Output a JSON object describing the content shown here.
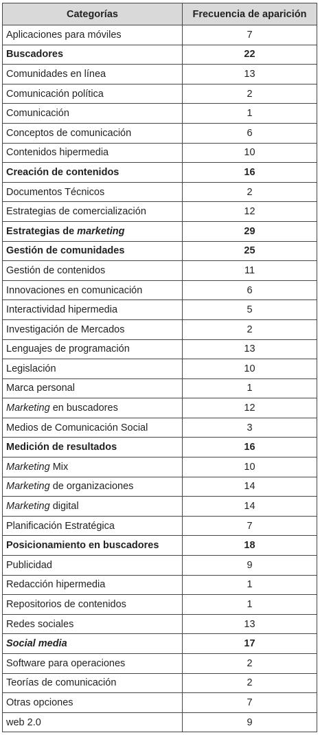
{
  "table": {
    "header": [
      "Categorías",
      "Frecuencia de aparición"
    ],
    "rows": [
      {
        "category": [
          {
            "text": "Aplicaciones para móviles"
          }
        ],
        "frequency": 7
      },
      {
        "category": [
          {
            "text": "Buscadores"
          }
        ],
        "frequency": 22,
        "bold": true
      },
      {
        "category": [
          {
            "text": "Comunidades en línea"
          }
        ],
        "frequency": 13
      },
      {
        "category": [
          {
            "text": "Comunicación política"
          }
        ],
        "frequency": 2
      },
      {
        "category": [
          {
            "text": "Comunicación"
          }
        ],
        "frequency": 1
      },
      {
        "category": [
          {
            "text": "Conceptos de comunicación"
          }
        ],
        "frequency": 6
      },
      {
        "category": [
          {
            "text": "Contenidos hipermedia"
          }
        ],
        "frequency": 10
      },
      {
        "category": [
          {
            "text": "Creación de contenidos"
          }
        ],
        "frequency": 16,
        "bold": true
      },
      {
        "category": [
          {
            "text": "Documentos Técnicos"
          }
        ],
        "frequency": 2
      },
      {
        "category": [
          {
            "text": "Estrategias de comercialización"
          }
        ],
        "frequency": 12
      },
      {
        "category": [
          {
            "text": "Estrategias de "
          },
          {
            "text": "marketing",
            "italic": true
          }
        ],
        "frequency": 29,
        "bold": true
      },
      {
        "category": [
          {
            "text": "Gestión de comunidades"
          }
        ],
        "frequency": 25,
        "bold": true
      },
      {
        "category": [
          {
            "text": "Gestión de contenidos"
          }
        ],
        "frequency": 11
      },
      {
        "category": [
          {
            "text": "Innovaciones en comunicación"
          }
        ],
        "frequency": 6
      },
      {
        "category": [
          {
            "text": "Interactividad hipermedia"
          }
        ],
        "frequency": 5
      },
      {
        "category": [
          {
            "text": "Investigación de Mercados"
          }
        ],
        "frequency": 2
      },
      {
        "category": [
          {
            "text": "Lenguajes de programación"
          }
        ],
        "frequency": 13
      },
      {
        "category": [
          {
            "text": "Legislación"
          }
        ],
        "frequency": 10
      },
      {
        "category": [
          {
            "text": "Marca personal"
          }
        ],
        "frequency": 1
      },
      {
        "category": [
          {
            "text": "Marketing",
            "italic": true
          },
          {
            "text": " en buscadores"
          }
        ],
        "frequency": 12
      },
      {
        "category": [
          {
            "text": "Medios de Comunicación Social"
          }
        ],
        "frequency": 3
      },
      {
        "category": [
          {
            "text": "Medición de resultados"
          }
        ],
        "frequency": 16,
        "bold": true
      },
      {
        "category": [
          {
            "text": "Marketing",
            "italic": true
          },
          {
            "text": " Mix"
          }
        ],
        "frequency": 10
      },
      {
        "category": [
          {
            "text": "Marketing",
            "italic": true
          },
          {
            "text": " de organizaciones"
          }
        ],
        "frequency": 14
      },
      {
        "category": [
          {
            "text": "Marketing",
            "italic": true
          },
          {
            "text": " digital"
          }
        ],
        "frequency": 14
      },
      {
        "category": [
          {
            "text": "Planificación Estratégica"
          }
        ],
        "frequency": 7
      },
      {
        "category": [
          {
            "text": "Posicionamiento en buscadores"
          }
        ],
        "frequency": 18,
        "bold": true
      },
      {
        "category": [
          {
            "text": "Publicidad"
          }
        ],
        "frequency": 9
      },
      {
        "category": [
          {
            "text": "Redacción hipermedia"
          }
        ],
        "frequency": 1
      },
      {
        "category": [
          {
            "text": "Repositorios de contenidos"
          }
        ],
        "frequency": 1
      },
      {
        "category": [
          {
            "text": "Redes sociales"
          }
        ],
        "frequency": 13
      },
      {
        "category": [
          {
            "text": "Social media",
            "italic": true
          }
        ],
        "frequency": 17,
        "bold": true
      },
      {
        "category": [
          {
            "text": "Software para operaciones"
          }
        ],
        "frequency": 2
      },
      {
        "category": [
          {
            "text": "Teorías de comunicación"
          }
        ],
        "frequency": 2
      },
      {
        "category": [
          {
            "text": "Otras opciones"
          }
        ],
        "frequency": 7
      },
      {
        "category": [
          {
            "text": "web 2.0"
          }
        ],
        "frequency": 9
      }
    ]
  }
}
